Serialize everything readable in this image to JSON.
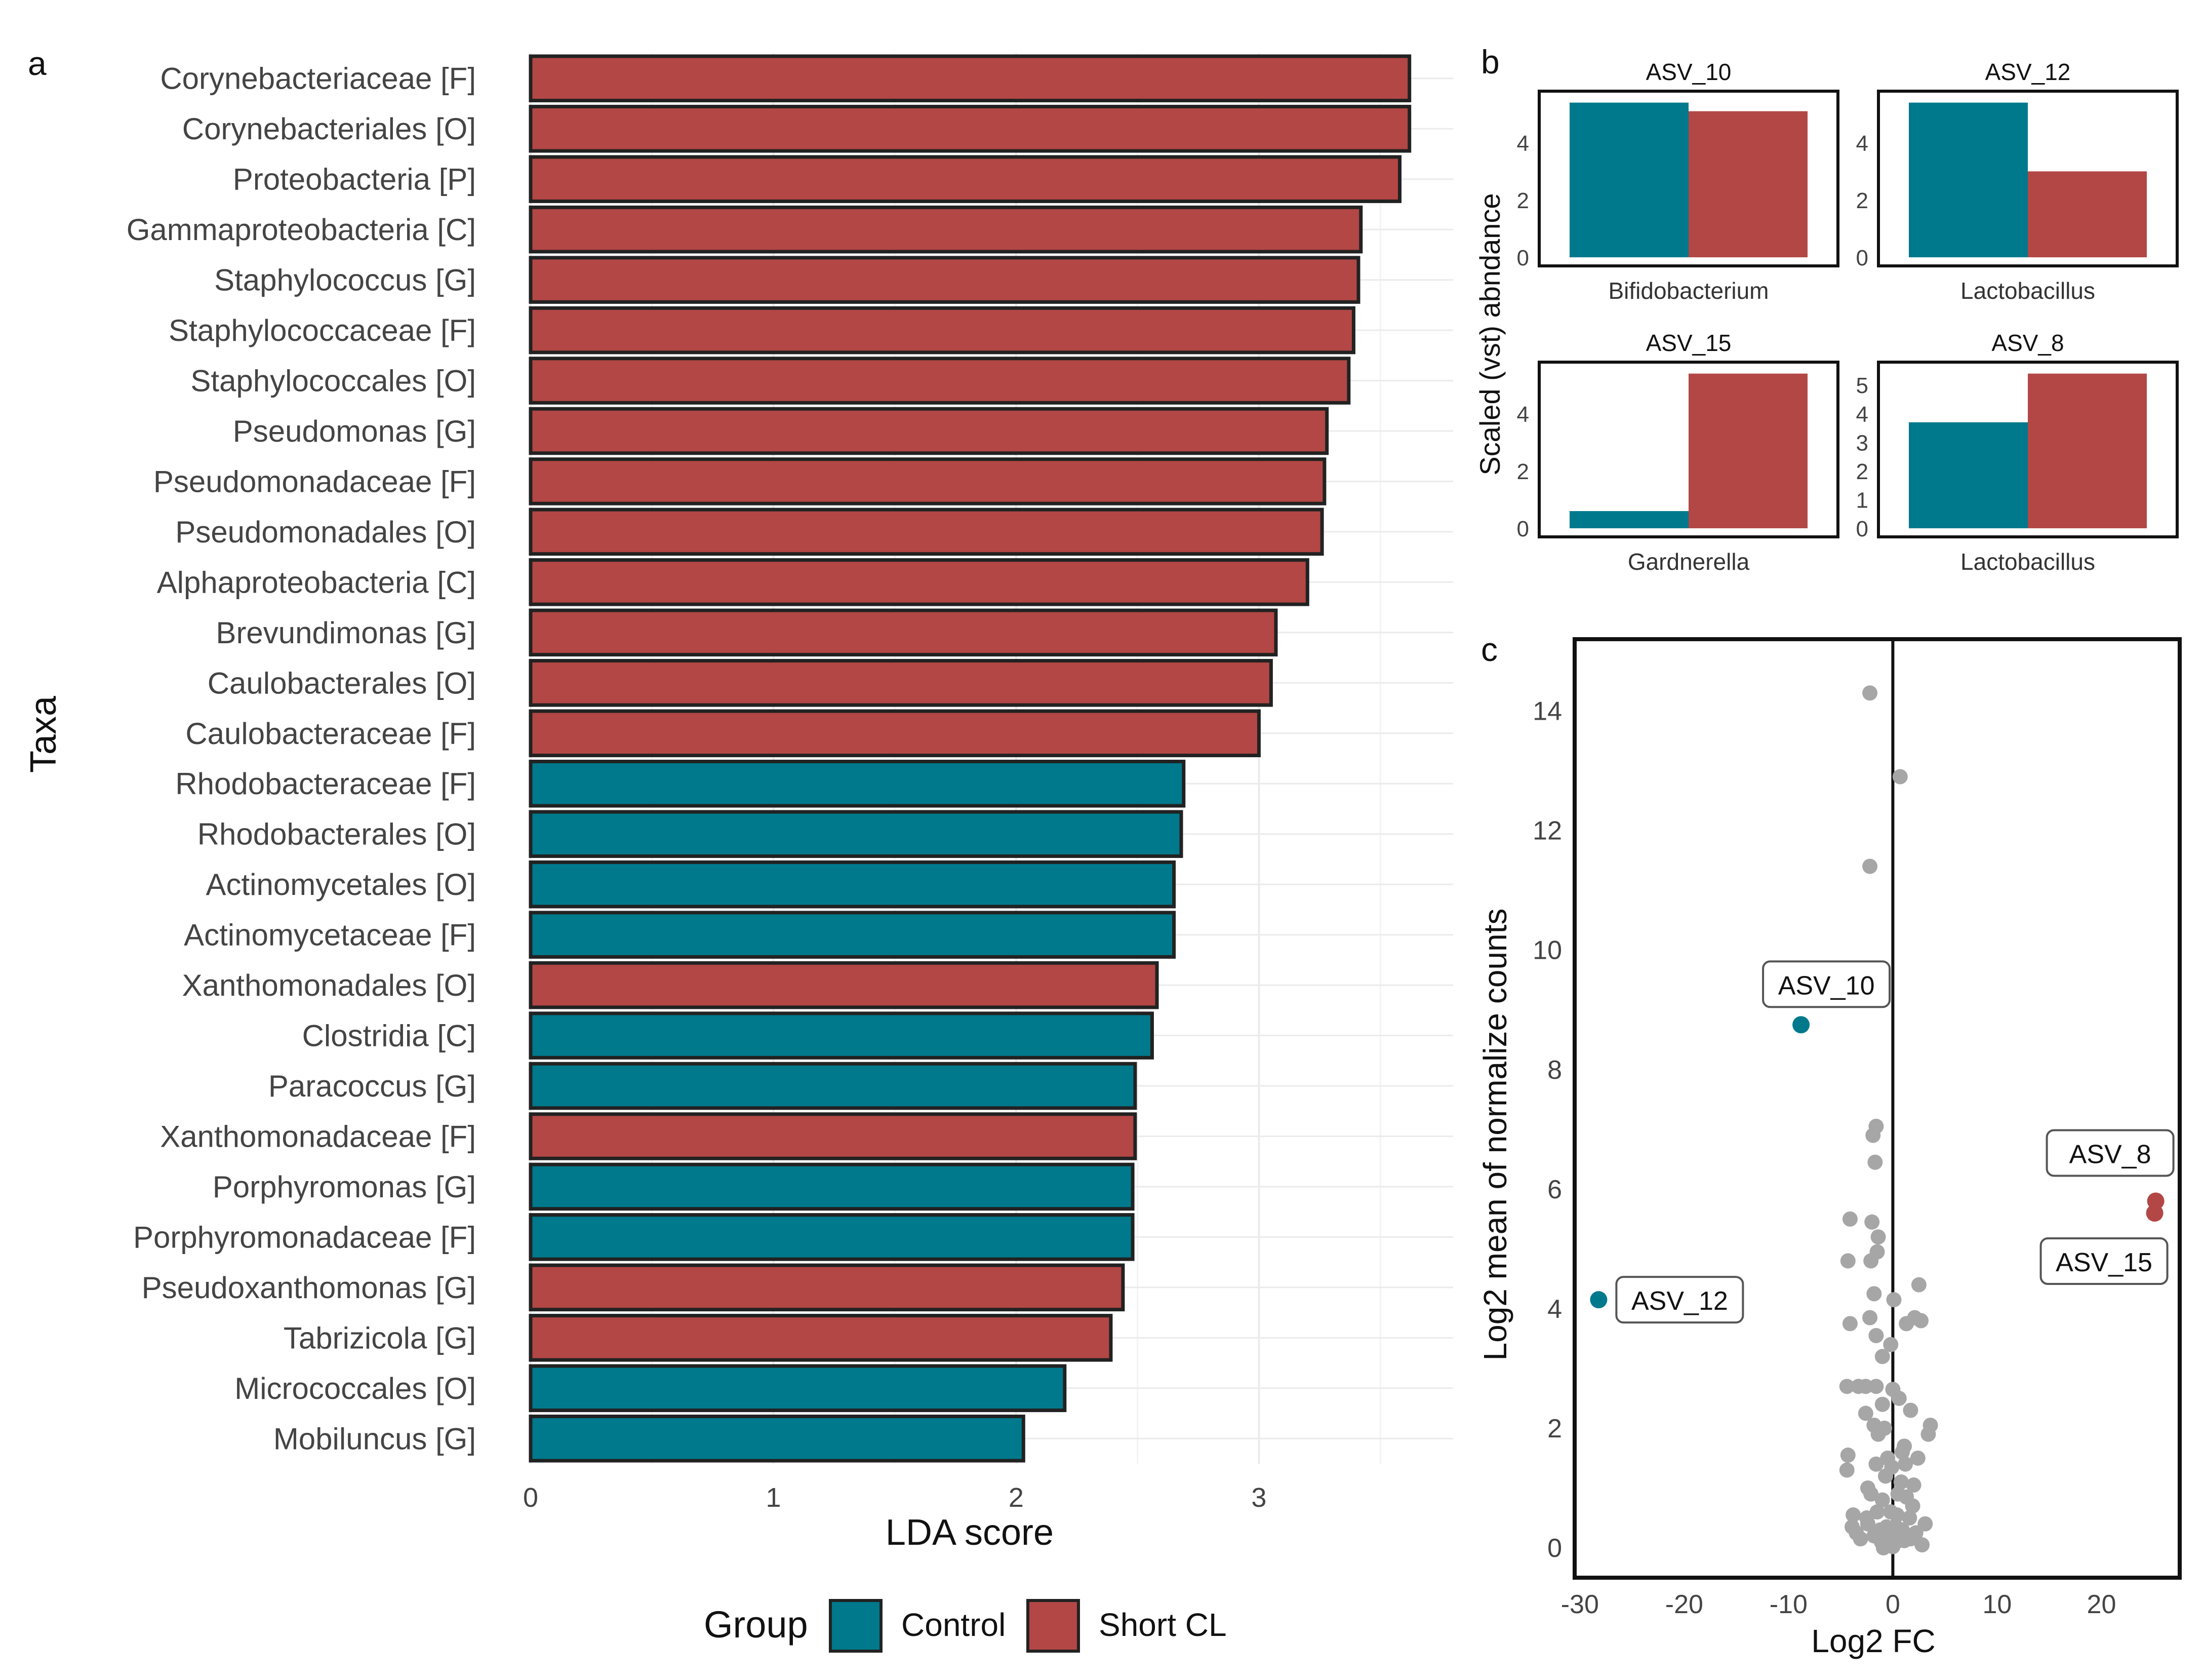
{
  "colors": {
    "control": "#00798C",
    "short_cl": "#B24745",
    "grey": "#A6A6A6",
    "grid": "#EBEBEB"
  },
  "panel_labels": {
    "a": "a",
    "b": "b",
    "c": "c"
  },
  "legend": {
    "title": "Group",
    "control": "Control",
    "short_cl": "Short CL"
  },
  "chart_data": [
    {
      "id": "lda",
      "type": "bar",
      "orientation": "horizontal",
      "xlabel": "LDA score",
      "ylabel": "Taxa",
      "xlim": [
        0,
        3.8
      ],
      "xticks": [
        0,
        1,
        2,
        3
      ],
      "bars": [
        {
          "taxon": "Corynebacteriaceae [F]",
          "value": 3.62,
          "group": "Short CL"
        },
        {
          "taxon": "Corynebacteriales [O]",
          "value": 3.62,
          "group": "Short CL"
        },
        {
          "taxon": "Proteobacteria [P]",
          "value": 3.58,
          "group": "Short CL"
        },
        {
          "taxon": "Gammaproteobacteria [C]",
          "value": 3.42,
          "group": "Short CL"
        },
        {
          "taxon": "Staphylococcus [G]",
          "value": 3.41,
          "group": "Short CL"
        },
        {
          "taxon": "Staphylococcaceae [F]",
          "value": 3.39,
          "group": "Short CL"
        },
        {
          "taxon": "Staphylococcales [O]",
          "value": 3.37,
          "group": "Short CL"
        },
        {
          "taxon": "Pseudomonas [G]",
          "value": 3.28,
          "group": "Short CL"
        },
        {
          "taxon": "Pseudomonadaceae [F]",
          "value": 3.27,
          "group": "Short CL"
        },
        {
          "taxon": "Pseudomonadales [O]",
          "value": 3.26,
          "group": "Short CL"
        },
        {
          "taxon": "Alphaproteobacteria [C]",
          "value": 3.2,
          "group": "Short CL"
        },
        {
          "taxon": "Brevundimonas [G]",
          "value": 3.07,
          "group": "Short CL"
        },
        {
          "taxon": "Caulobacterales [O]",
          "value": 3.05,
          "group": "Short CL"
        },
        {
          "taxon": "Caulobacteraceae [F]",
          "value": 3.0,
          "group": "Short CL"
        },
        {
          "taxon": "Rhodobacteraceae [F]",
          "value": 2.69,
          "group": "Control"
        },
        {
          "taxon": "Rhodobacterales [O]",
          "value": 2.68,
          "group": "Control"
        },
        {
          "taxon": "Actinomycetales [O]",
          "value": 2.65,
          "group": "Control"
        },
        {
          "taxon": "Actinomycetaceae [F]",
          "value": 2.65,
          "group": "Control"
        },
        {
          "taxon": "Xanthomonadales [O]",
          "value": 2.58,
          "group": "Short CL"
        },
        {
          "taxon": "Clostridia [C]",
          "value": 2.56,
          "group": "Control"
        },
        {
          "taxon": "Paracoccus [G]",
          "value": 2.49,
          "group": "Control"
        },
        {
          "taxon": "Xanthomonadaceae [F]",
          "value": 2.49,
          "group": "Short CL"
        },
        {
          "taxon": "Porphyromonas [G]",
          "value": 2.48,
          "group": "Control"
        },
        {
          "taxon": "Porphyromonadaceae [F]",
          "value": 2.48,
          "group": "Control"
        },
        {
          "taxon": "Pseudoxanthomonas [G]",
          "value": 2.44,
          "group": "Short CL"
        },
        {
          "taxon": "Tabrizicola [G]",
          "value": 2.39,
          "group": "Short CL"
        },
        {
          "taxon": "Micrococcales [O]",
          "value": 2.2,
          "group": "Control"
        },
        {
          "taxon": "Mobiluncus [G]",
          "value": 2.03,
          "group": "Control"
        }
      ]
    },
    {
      "id": "abundance",
      "type": "bar",
      "ylabel": "Scaled (vst) abndance",
      "facets": [
        {
          "title": "ASV_10",
          "xlabel": "Bifidobacterium",
          "ylim": [
            -0.3,
            5.8
          ],
          "yticks": [
            0,
            2,
            4
          ],
          "control": 5.4,
          "short_cl": 5.1
        },
        {
          "title": "ASV_12",
          "xlabel": "Lactobacillus",
          "ylim": [
            -0.3,
            5.8
          ],
          "yticks": [
            0,
            2,
            4
          ],
          "control": 5.4,
          "short_cl": 3.0
        },
        {
          "title": "ASV_15",
          "xlabel": "Gardnerella",
          "ylim": [
            -0.3,
            5.8
          ],
          "yticks": [
            0,
            2,
            4
          ],
          "control": 0.6,
          "short_cl": 5.4
        },
        {
          "title": "ASV_8",
          "xlabel": "Lactobacillus",
          "ylim": [
            -0.3,
            5.8
          ],
          "yticks": [
            0,
            1,
            2,
            3,
            4,
            5
          ],
          "control": 3.7,
          "short_cl": 5.4
        }
      ]
    },
    {
      "id": "volcano",
      "type": "scatter",
      "xlabel": "Log2 FC",
      "ylabel": "Log2 mean of normalize counts",
      "xlim": [
        -30.5,
        27.5
      ],
      "ylim": [
        -0.5,
        15.2
      ],
      "xticks": [
        -30,
        -20,
        -10,
        0,
        10,
        20
      ],
      "yticks": [
        0,
        2,
        4,
        6,
        8,
        10,
        12,
        14
      ],
      "vline": 0,
      "highlighted": [
        {
          "label": "ASV_10",
          "x": -8.8,
          "y": 8.75,
          "group": "Control"
        },
        {
          "label": "ASV_12",
          "x": -28.2,
          "y": 4.15,
          "group": "Control"
        },
        {
          "label": "ASV_8",
          "x": 25.2,
          "y": 5.8,
          "group": "Short CL"
        },
        {
          "label": "ASV_15",
          "x": 25.1,
          "y": 5.6,
          "group": "Short CL"
        }
      ],
      "background_points": [
        [
          -2.2,
          14.3
        ],
        [
          0.7,
          12.9
        ],
        [
          -2.2,
          11.4
        ],
        [
          -1.6,
          7.05
        ],
        [
          -1.9,
          6.9
        ],
        [
          -1.7,
          6.45
        ],
        [
          -4.1,
          5.5
        ],
        [
          -2.0,
          5.45
        ],
        [
          -1.4,
          5.2
        ],
        [
          -1.5,
          4.95
        ],
        [
          -4.3,
          4.8
        ],
        [
          -2.1,
          4.8
        ],
        [
          2.5,
          4.4
        ],
        [
          -1.8,
          4.25
        ],
        [
          0.1,
          4.15
        ],
        [
          -2.2,
          3.85
        ],
        [
          2.1,
          3.85
        ],
        [
          2.7,
          3.8
        ],
        [
          -4.1,
          3.75
        ],
        [
          1.3,
          3.75
        ],
        [
          -1.6,
          3.55
        ],
        [
          -0.2,
          3.4
        ],
        [
          -1.0,
          3.2
        ],
        [
          -4.4,
          2.7
        ],
        [
          -3.3,
          2.7
        ],
        [
          -2.6,
          2.7
        ],
        [
          -1.6,
          2.7
        ],
        [
          0.0,
          2.65
        ],
        [
          -1.0,
          2.4
        ],
        [
          0.6,
          2.5
        ],
        [
          -2.6,
          2.25
        ],
        [
          1.7,
          2.3
        ],
        [
          -1.8,
          2.05
        ],
        [
          -0.8,
          2.0
        ],
        [
          3.6,
          2.05
        ],
        [
          3.4,
          1.9
        ],
        [
          1.1,
          1.7
        ],
        [
          -0.5,
          1.5
        ],
        [
          -4.3,
          1.55
        ],
        [
          -1.6,
          1.4
        ],
        [
          1.2,
          1.4
        ],
        [
          -4.4,
          1.3
        ],
        [
          -0.7,
          1.2
        ],
        [
          0.8,
          1.1
        ],
        [
          -2.4,
          1.0
        ],
        [
          2.0,
          1.05
        ],
        [
          -1.0,
          0.8
        ],
        [
          1.3,
          0.85
        ],
        [
          -1.5,
          0.6
        ],
        [
          -3.8,
          0.55
        ],
        [
          0.4,
          0.55
        ],
        [
          1.6,
          0.5
        ],
        [
          -2.4,
          0.4
        ],
        [
          -0.6,
          0.35
        ],
        [
          0.9,
          0.3
        ],
        [
          -1.8,
          0.2
        ],
        [
          2.2,
          0.25
        ],
        [
          -3.1,
          0.15
        ],
        [
          -1.1,
          0.1
        ],
        [
          0.2,
          0.08
        ],
        [
          1.1,
          0.12
        ],
        [
          -0.4,
          0.05
        ],
        [
          2.8,
          0.05
        ],
        [
          -2.5,
          0.5
        ],
        [
          -0.2,
          0.6
        ],
        [
          0.5,
          0.9
        ],
        [
          -1.2,
          0.3
        ],
        [
          1.7,
          0.15
        ],
        [
          -0.9,
          0.0
        ],
        [
          0.0,
          0.02
        ],
        [
          3.1,
          0.4
        ],
        [
          -3.5,
          0.25
        ],
        [
          -0.3,
          0.2
        ],
        [
          0.3,
          0.35
        ],
        [
          1.9,
          0.7
        ],
        [
          -2.1,
          0.9
        ],
        [
          -3.9,
          0.35
        ],
        [
          0.9,
          1.6
        ],
        [
          -1.4,
          1.9
        ],
        [
          2.4,
          1.5
        ],
        [
          -0.1,
          1.35
        ]
      ]
    }
  ]
}
